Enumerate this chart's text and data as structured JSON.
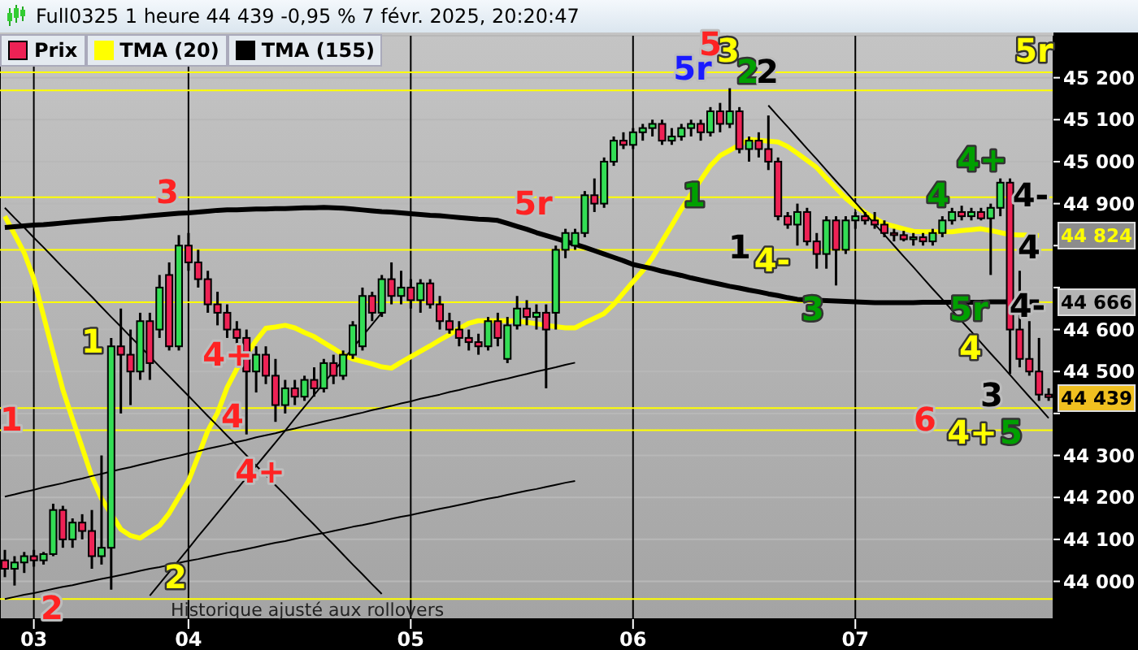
{
  "chart_data": {
    "type": "candlestick",
    "title": "Full0325 1 heure 44 439 -0,95 % 7 févr. 2025, 20:20:47",
    "categories": [
      null,
      null,
      null,
      "03",
      null,
      null,
      null,
      null,
      null,
      null,
      null,
      null,
      null,
      null,
      null,
      null,
      null,
      null,
      null,
      "04",
      null,
      null,
      null,
      null,
      null,
      null,
      null,
      null,
      null,
      null,
      null,
      null,
      null,
      null,
      null,
      null,
      null,
      null,
      null,
      null,
      null,
      null,
      "05",
      null,
      null,
      null,
      null,
      null,
      null,
      null,
      null,
      null,
      null,
      null,
      null,
      null,
      null,
      null,
      null,
      null,
      null,
      null,
      null,
      null,
      null,
      "06",
      null,
      null,
      null,
      null,
      null,
      null,
      null,
      null,
      null,
      null,
      null,
      null,
      null,
      null,
      null,
      null,
      null,
      null,
      null,
      null,
      null,
      null,
      "07",
      null,
      null,
      null,
      null,
      null,
      null,
      null,
      null,
      null,
      null,
      null,
      null,
      null,
      null,
      null,
      null,
      null,
      null,
      null,
      null
    ],
    "ylim": [
      43910,
      45300
    ],
    "yticks": [
      {
        "value": 44000,
        "label": "44 000"
      },
      {
        "value": 44100,
        "label": "44 100"
      },
      {
        "value": 44200,
        "label": "44 200"
      },
      {
        "value": 44300,
        "label": "44 300"
      },
      {
        "value": 44400,
        "label": null
      },
      {
        "value": 44500,
        "label": "44 500"
      },
      {
        "value": 44600,
        "label": "44 600"
      },
      {
        "value": 44700,
        "label": null
      },
      {
        "value": 44800,
        "label": null
      },
      {
        "value": 44900,
        "label": "44 900"
      },
      {
        "value": 45000,
        "label": "45 000"
      },
      {
        "value": 45100,
        "label": "45 100"
      },
      {
        "value": 45200,
        "label": "45 200"
      }
    ],
    "grid": true,
    "legend": "top left",
    "series": [
      {
        "name": "Prix",
        "ohlc": [
          [
            44050,
            44075,
            44010,
            44030
          ],
          [
            44030,
            44060,
            43990,
            44045
          ],
          [
            44045,
            44070,
            44020,
            44060
          ],
          [
            44060,
            44075,
            44035,
            44050
          ],
          [
            44050,
            44070,
            44040,
            44065
          ],
          [
            44065,
            44185,
            44060,
            44170
          ],
          [
            44170,
            44180,
            44080,
            44100
          ],
          [
            44100,
            44150,
            44080,
            44140
          ],
          [
            44140,
            44160,
            44100,
            44120
          ],
          [
            44120,
            44170,
            44030,
            44060
          ],
          [
            44060,
            44300,
            44040,
            44080
          ],
          [
            44080,
            44580,
            43980,
            44560
          ],
          [
            44560,
            44650,
            44400,
            44540
          ],
          [
            44540,
            44600,
            44420,
            44500
          ],
          [
            44500,
            44640,
            44480,
            44620
          ],
          [
            44620,
            44640,
            44480,
            44520
          ],
          [
            44600,
            44730,
            44580,
            44700
          ],
          [
            44730,
            44760,
            44550,
            44560
          ],
          [
            44560,
            44825,
            44550,
            44800
          ],
          [
            44800,
            44830,
            44740,
            44760
          ],
          [
            44760,
            44790,
            44700,
            44720
          ],
          [
            44720,
            44740,
            44640,
            44660
          ],
          [
            44660,
            44690,
            44610,
            44640
          ],
          [
            44640,
            44660,
            44580,
            44600
          ],
          [
            44600,
            44620,
            44560,
            44580
          ],
          [
            44580,
            44600,
            44350,
            44500
          ],
          [
            44500,
            44560,
            44450,
            44540
          ],
          [
            44540,
            44560,
            44470,
            44490
          ],
          [
            44490,
            44530,
            44380,
            44420
          ],
          [
            44420,
            44480,
            44400,
            44460
          ],
          [
            44460,
            44480,
            44420,
            44440
          ],
          [
            44440,
            44490,
            44430,
            44480
          ],
          [
            44480,
            44510,
            44440,
            44460
          ],
          [
            44460,
            44530,
            44450,
            44520
          ],
          [
            44520,
            44540,
            44470,
            44490
          ],
          [
            44490,
            44550,
            44480,
            44540
          ],
          [
            44540,
            44620,
            44530,
            44610
          ],
          [
            44560,
            44700,
            44550,
            44680
          ],
          [
            44680,
            44690,
            44620,
            44640
          ],
          [
            44640,
            44730,
            44630,
            44720
          ],
          [
            44720,
            44760,
            44660,
            44680
          ],
          [
            44680,
            44740,
            44660,
            44700
          ],
          [
            44700,
            44720,
            44650,
            44670
          ],
          [
            44670,
            44720,
            44640,
            44710
          ],
          [
            44710,
            44720,
            44650,
            44660
          ],
          [
            44660,
            44680,
            44600,
            44620
          ],
          [
            44620,
            44640,
            44590,
            44600
          ],
          [
            44600,
            44620,
            44560,
            44580
          ],
          [
            44580,
            44600,
            44550,
            44570
          ],
          [
            44570,
            44590,
            44540,
            44560
          ],
          [
            44560,
            44630,
            44550,
            44620
          ],
          [
            44620,
            44640,
            44560,
            44580
          ],
          [
            44530,
            44630,
            44520,
            44610
          ],
          [
            44610,
            44680,
            44600,
            44650
          ],
          [
            44650,
            44670,
            44610,
            44630
          ],
          [
            44630,
            44660,
            44600,
            44640
          ],
          [
            44640,
            44660,
            44460,
            44600
          ],
          [
            44640,
            44800,
            44600,
            44790
          ],
          [
            44790,
            44840,
            44770,
            44830
          ],
          [
            44800,
            44840,
            44790,
            44830
          ],
          [
            44830,
            44930,
            44820,
            44920
          ],
          [
            44920,
            44960,
            44880,
            44900
          ],
          [
            44900,
            45010,
            44890,
            45000
          ],
          [
            45000,
            45060,
            44990,
            45050
          ],
          [
            45050,
            45070,
            45030,
            45040
          ],
          [
            45040,
            45080,
            45030,
            45070
          ],
          [
            45070,
            45090,
            45050,
            45080
          ],
          [
            45080,
            45100,
            45060,
            45090
          ],
          [
            45090,
            45100,
            45040,
            45050
          ],
          [
            45050,
            45080,
            45040,
            45060
          ],
          [
            45060,
            45090,
            45050,
            45080
          ],
          [
            45080,
            45100,
            45060,
            45090
          ],
          [
            45090,
            45100,
            45050,
            45070
          ],
          [
            45070,
            45130,
            45060,
            45120
          ],
          [
            45120,
            45140,
            45070,
            45090
          ],
          [
            45090,
            45175,
            45080,
            45120
          ],
          [
            45120,
            45130,
            45020,
            45030
          ],
          [
            45030,
            45060,
            45000,
            45050
          ],
          [
            45050,
            45070,
            45010,
            45030
          ],
          [
            45030,
            45110,
            44980,
            45000
          ],
          [
            45000,
            45010,
            44860,
            44870
          ],
          [
            44870,
            44880,
            44840,
            44850
          ],
          [
            44850,
            44900,
            44800,
            44880
          ],
          [
            44880,
            44890,
            44800,
            44810
          ],
          [
            44810,
            44830,
            44745,
            44780
          ],
          [
            44780,
            44870,
            44745,
            44860
          ],
          [
            44860,
            44870,
            44705,
            44790
          ],
          [
            44790,
            44870,
            44780,
            44860
          ],
          [
            44860,
            44880,
            44840,
            44870
          ],
          [
            44870,
            44880,
            44850,
            44860
          ],
          [
            44860,
            44880,
            44840,
            44850
          ],
          [
            44850,
            44860,
            44820,
            44830
          ],
          [
            44830,
            44840,
            44810,
            44825
          ],
          [
            44825,
            44835,
            44810,
            44815
          ],
          [
            44815,
            44830,
            44800,
            44820
          ],
          [
            44820,
            44830,
            44800,
            44810
          ],
          [
            44810,
            44840,
            44800,
            44830
          ],
          [
            44830,
            44870,
            44820,
            44860
          ],
          [
            44860,
            44890,
            44850,
            44880
          ],
          [
            44880,
            44895,
            44860,
            44870
          ],
          [
            44870,
            44890,
            44860,
            44880
          ],
          [
            44880,
            44890,
            44860,
            44865
          ],
          [
            44865,
            44900,
            44730,
            44890
          ],
          [
            44890,
            44960,
            44870,
            44950
          ],
          [
            44950,
            44960,
            44494,
            44600
          ],
          [
            44600,
            44740,
            44510,
            44530
          ],
          [
            44530,
            44620,
            44490,
            44500
          ],
          [
            44500,
            44580,
            44430,
            44445
          ],
          [
            44445,
            44460,
            44430,
            44439
          ]
        ],
        "colors": [
          "#ee2255",
          "#33dd55",
          "#33dd55",
          "#ee2255",
          "#33dd55",
          "#33dd55",
          "#ee2255",
          "#33dd55",
          "#ee2255",
          "#ee2255",
          "#33dd55",
          "#33dd55",
          "#ee2255",
          "#ee2255",
          "#33dd55",
          "#ee2255",
          "#33dd55",
          "#ee2255",
          "#33dd55",
          "#ee2255",
          "#ee2255",
          "#ee2255",
          "#ee2255",
          "#ee2255",
          "#ee2255",
          "#ee2255",
          "#33dd55",
          "#ee2255",
          "#ee2255",
          "#33dd55",
          "#ee2255",
          "#33dd55",
          "#ee2255",
          "#33dd55",
          "#ee2255",
          "#33dd55",
          "#33dd55",
          "#33dd55",
          "#ee2255",
          "#33dd55",
          "#ee2255",
          "#33dd55",
          "#ee2255",
          "#33dd55",
          "#ee2255",
          "#ee2255",
          "#ee2255",
          "#ee2255",
          "#ee2255",
          "#ee2255",
          "#33dd55",
          "#ee2255",
          "#33dd55",
          "#33dd55",
          "#ee2255",
          "#33dd55",
          "#ee2255",
          "#33dd55",
          "#33dd55",
          "#33dd55",
          "#33dd55",
          "#ee2255",
          "#33dd55",
          "#33dd55",
          "#ee2255",
          "#33dd55",
          "#33dd55",
          "#33dd55",
          "#ee2255",
          "#33dd55",
          "#33dd55",
          "#33dd55",
          "#ee2255",
          "#33dd55",
          "#ee2255",
          "#33dd55",
          "#ee2255",
          "#33dd55",
          "#ee2255",
          "#ee2255",
          "#ee2255",
          "#ee2255",
          "#33dd55",
          "#ee2255",
          "#ee2255",
          "#33dd55",
          "#ee2255",
          "#33dd55",
          "#33dd55",
          "#ee2255",
          "#ee2255",
          "#ee2255",
          "#ee2255",
          "#ee2255",
          "#33dd55",
          "#ee2255",
          "#33dd55",
          "#33dd55",
          "#33dd55",
          "#ee2255",
          "#33dd55",
          "#ee2255",
          "#33dd55",
          "#33dd55",
          "#ee2255",
          "#ee2255",
          "#ee2255",
          "#ee2255",
          "#ee2255"
        ]
      },
      {
        "name": "TMA (20)",
        "type": "line",
        "color": "#ffff00",
        "values": [
          44870,
          44827,
          44783,
          44721,
          44633,
          44545,
          44457,
          44387,
          44319,
          44250,
          44197,
          44161,
          44124,
          44109,
          44103,
          44118,
          44133,
          44162,
          44201,
          44239,
          44298,
          44359,
          44401,
          44462,
          44506,
          44540,
          44574,
          44603,
          44606,
          44610,
          44604,
          44593,
          44583,
          44569,
          44555,
          44540,
          44530,
          44524,
          44518,
          44511,
          44508,
          44522,
          44535,
          44548,
          44561,
          44575,
          44588,
          44602,
          44615,
          44621,
          44621,
          44621,
          44621,
          44620,
          44617,
          44614,
          44610,
          44607,
          44604,
          44604,
          44616,
          44627,
          44638,
          44660,
          44687,
          44714,
          44740,
          44771,
          44810,
          44848,
          44887,
          44922,
          44956,
          44990,
          45014,
          45027,
          45040,
          45053,
          45051,
          45049,
          45047,
          45036,
          45020,
          45003,
          44986,
          44961,
          44937,
          44913,
          44894,
          44879,
          44865,
          44852,
          44846,
          44840,
          44834,
          44833,
          44833,
          44833,
          44833,
          44836,
          44838,
          44840,
          44836,
          44831,
          44826,
          44825,
          44825,
          44824,
          null
        ]
      },
      {
        "name": "TMA (155)",
        "type": "line",
        "color": "#000000",
        "values": [
          44843,
          44845,
          44847,
          44849,
          44850,
          44852,
          44854,
          44856,
          44858,
          44860,
          44862,
          44864,
          44865,
          44867,
          44869,
          44871,
          44873,
          44875,
          44877,
          44878,
          44880,
          44882,
          44884,
          44885,
          44885,
          44886,
          44887,
          44887,
          44888,
          44888,
          44889,
          44890,
          44890,
          44891,
          44890,
          44889,
          44887,
          44885,
          44883,
          44881,
          44880,
          44878,
          44876,
          44874,
          44872,
          44871,
          44869,
          44867,
          44865,
          44863,
          44862,
          44860,
          44853,
          44846,
          44839,
          44831,
          44824,
          44817,
          44810,
          44803,
          44796,
          44788,
          44780,
          44772,
          44764,
          44755,
          44750,
          44745,
          44739,
          44734,
          44729,
          44723,
          44718,
          44713,
          44708,
          44703,
          44699,
          44694,
          44690,
          44685,
          44681,
          44676,
          44672,
          44671,
          44670,
          44669,
          44668,
          44667,
          44666,
          44665,
          44664,
          44664,
          44664,
          44664,
          44664,
          44665,
          44665,
          44665,
          44665,
          44665,
          44665,
          44665,
          44666,
          44666,
          44666,
          44666,
          44666,
          44666,
          null
        ]
      },
      {
        "type": "line",
        "color": "#000000",
        "values": [
          44202,
          44207,
          44213,
          44218,
          44224,
          44229,
          44234,
          44240,
          44245,
          44251,
          44256,
          44262,
          44267,
          44272,
          44278,
          44283,
          44289,
          44294,
          44299,
          44305,
          44310,
          44316,
          44321,
          44326,
          44332,
          44337,
          44343,
          44348,
          44353,
          44359,
          44364,
          44370,
          44375,
          44381,
          44386,
          44391,
          44397,
          44402,
          44408,
          44413,
          44418,
          44424,
          44429,
          44435,
          44440,
          44445,
          44451,
          44456,
          44462,
          44467,
          44473,
          44478,
          44483,
          44489,
          44494,
          44500,
          44505,
          44510,
          44516,
          44521,
          null,
          null,
          null,
          null,
          null,
          null,
          null,
          null,
          null,
          null,
          null,
          null,
          null,
          null,
          null,
          null,
          null,
          null,
          null,
          null,
          null,
          null,
          null,
          null,
          null,
          null,
          null,
          null,
          null,
          null,
          null,
          null,
          null,
          null,
          null,
          null,
          null,
          null,
          null,
          null,
          null,
          null,
          null,
          null,
          null,
          null,
          null,
          null,
          null
        ]
      },
      {
        "type": "line",
        "color": "#000000",
        "values": [
          43958,
          43963,
          43968,
          43972,
          43977,
          43982,
          43987,
          43991,
          43996,
          44001,
          44006,
          44010,
          44015,
          44020,
          44025,
          44030,
          44034,
          44039,
          44044,
          44049,
          44053,
          44058,
          44063,
          44068,
          44072,
          44077,
          44082,
          44087,
          44092,
          44096,
          44101,
          44106,
          44111,
          44115,
          44120,
          44125,
          44130,
          44134,
          44139,
          44144,
          44149,
          44154,
          44158,
          44163,
          44168,
          44173,
          44177,
          44182,
          44187,
          44192,
          44197,
          44201,
          44206,
          44211,
          44216,
          44220,
          44225,
          44230,
          44235,
          44239,
          null,
          null,
          null,
          null,
          null,
          null,
          null,
          null,
          null,
          null,
          null,
          null,
          null,
          null,
          null,
          null,
          null,
          null,
          null,
          null,
          null,
          null,
          null,
          null,
          null,
          null,
          null,
          null,
          null,
          null,
          null,
          null,
          null,
          null,
          null,
          null,
          null,
          null,
          null,
          null,
          null,
          null,
          null,
          null,
          null,
          null,
          null,
          null,
          null
        ]
      },
      {
        "type": "line",
        "color": "#000000",
        "values": [
          44890,
          44866,
          44843,
          44819,
          44796,
          44772,
          44748,
          44725,
          44701,
          44678,
          44654,
          44630,
          44607,
          44583,
          44560,
          44536,
          44512,
          44489,
          44465,
          44442,
          44418,
          44394,
          44371,
          44347,
          44324,
          44300,
          44276,
          44253,
          44229,
          44206,
          44182,
          44158,
          44135,
          44111,
          44088,
          44064,
          44040,
          44017,
          43993,
          43970,
          null,
          null,
          null,
          null,
          null,
          null,
          null,
          null,
          null,
          null,
          null,
          null,
          null,
          null,
          null,
          null,
          null,
          null,
          null,
          null,
          null,
          null,
          null,
          null,
          null,
          null,
          null,
          null,
          null,
          null,
          null,
          null,
          null,
          null,
          null,
          null,
          null,
          null,
          null,
          null,
          null,
          null,
          null,
          null,
          null,
          null,
          null,
          null,
          null,
          null,
          null,
          null,
          null,
          null,
          null,
          null,
          null,
          null,
          null,
          null,
          null,
          null,
          null,
          null,
          null,
          null,
          null,
          null,
          null
        ]
      },
      {
        "type": "line",
        "color": "#000000",
        "values": [
          null,
          null,
          null,
          null,
          null,
          null,
          null,
          null,
          null,
          null,
          null,
          null,
          null,
          null,
          null,
          43966,
          43994,
          44022,
          44050,
          44078,
          44107,
          44135,
          44163,
          44191,
          44219,
          44247,
          44275,
          44303,
          44331,
          44359,
          44388,
          44416,
          44444,
          44472,
          44500,
          44528,
          44556,
          44584,
          44612,
          44640,
          null,
          null,
          null,
          null,
          null,
          null,
          null,
          null,
          null,
          null,
          null,
          null,
          null,
          null,
          null,
          null,
          null,
          null,
          null,
          null,
          null,
          null,
          null,
          null,
          null,
          null,
          null,
          null,
          null,
          null,
          null,
          null,
          null,
          null,
          null,
          null,
          null,
          null,
          null,
          null,
          null,
          null,
          null,
          null,
          null,
          null,
          null,
          null,
          null,
          null,
          null,
          null,
          null,
          null,
          null,
          null,
          null,
          null,
          null,
          null,
          null,
          null,
          null,
          null,
          null,
          null,
          null,
          null,
          null
        ]
      },
      {
        "type": "line",
        "color": "#000000",
        "values": [
          null,
          null,
          null,
          null,
          null,
          null,
          null,
          null,
          null,
          null,
          null,
          null,
          null,
          null,
          null,
          null,
          null,
          null,
          null,
          null,
          null,
          null,
          null,
          null,
          null,
          null,
          null,
          null,
          null,
          null,
          null,
          null,
          null,
          null,
          null,
          null,
          null,
          null,
          null,
          null,
          null,
          null,
          null,
          null,
          null,
          null,
          null,
          null,
          null,
          null,
          null,
          null,
          null,
          null,
          null,
          null,
          null,
          null,
          null,
          null,
          null,
          null,
          null,
          null,
          null,
          null,
          null,
          null,
          null,
          null,
          null,
          null,
          null,
          null,
          null,
          null,
          null,
          null,
          null,
          45134,
          45108,
          45083,
          45057,
          45031,
          45006,
          44980,
          44954,
          44929,
          44903,
          44877,
          44851,
          44826,
          44800,
          44774,
          44749,
          44723,
          44697,
          44672,
          44646,
          44620,
          44595,
          44569,
          44543,
          44518,
          44492,
          44466,
          44440,
          44415,
          44389
        ]
      }
    ],
    "ref_lines": [
      {
        "axis": "y",
        "value": 45213,
        "color": "#ffff00"
      },
      {
        "axis": "y",
        "value": 45170,
        "color": "#ffff00"
      },
      {
        "axis": "y",
        "value": 44915,
        "color": "#ffff00"
      },
      {
        "axis": "y",
        "value": 44790,
        "color": "#ffff00"
      },
      {
        "axis": "y",
        "value": 44665,
        "color": "#ffff00"
      },
      {
        "axis": "y",
        "value": 44413,
        "color": "#ffff00"
      },
      {
        "axis": "y",
        "value": 44360,
        "color": "#ffff00"
      },
      {
        "axis": "y",
        "value": 43958,
        "color": "#ffff00"
      }
    ],
    "annotations": [
      "5",
      "5r",
      "3",
      "2",
      "2",
      "5r",
      "3",
      "5r",
      "1",
      "4+",
      "4",
      "4+",
      "1",
      "2",
      "2",
      "1",
      "1",
      "4-",
      "3",
      "4",
      "4+",
      "4-",
      "4",
      "4-",
      "5r",
      "4",
      "3",
      "4+",
      "5",
      "6",
      "44 824",
      "44 666",
      "44 439",
      "Historique ajusté aux rollovers"
    ]
  }
}
